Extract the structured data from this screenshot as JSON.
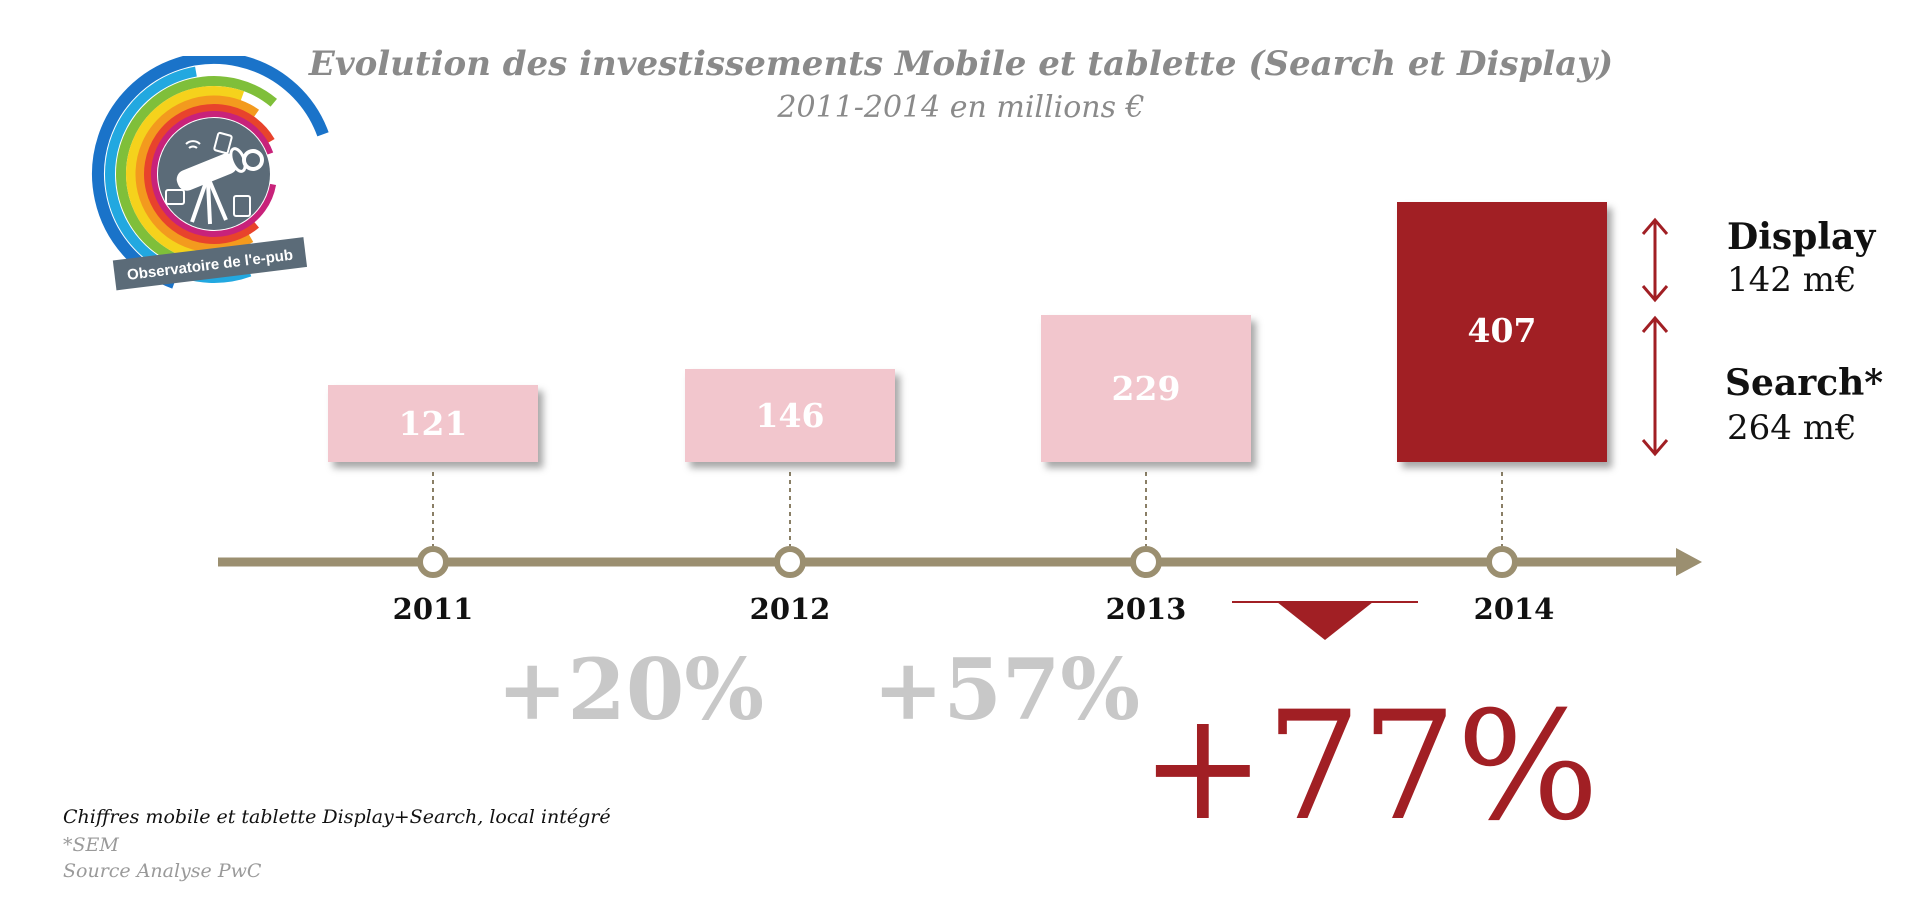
{
  "header": {
    "title": "Evolution des investissements Mobile et tablette (Search et Display)",
    "subtitle": "2011-2014 en millions €"
  },
  "logo": {
    "text": "Observatoire de l'e-pub",
    "colors": [
      "#1a73c9",
      "#22a8e0",
      "#7fbf3a",
      "#f5d21c",
      "#f39a1e",
      "#e8432c",
      "#c8227a"
    ]
  },
  "chart_data": {
    "type": "bar",
    "categories": [
      "2011",
      "2012",
      "2013",
      "2014"
    ],
    "values": [
      121,
      146,
      229,
      407
    ],
    "labels": [
      "121",
      "146",
      "229",
      "407"
    ],
    "growth": [
      {
        "label": "+20%",
        "between": [
          "2011",
          "2012"
        ],
        "value": 20,
        "highlight": false
      },
      {
        "label": "+57%",
        "between": [
          "2012",
          "2013"
        ],
        "value": 57,
        "highlight": false
      },
      {
        "label": "+77%",
        "between": [
          "2013",
          "2014"
        ],
        "value": 77,
        "highlight": true
      }
    ],
    "breakdown_2014": [
      {
        "name": "Display",
        "value": 142,
        "label": "142 m€"
      },
      {
        "name": "Search*",
        "value": 264,
        "label": "264 m€"
      }
    ],
    "colors": {
      "past": "#f2c6cd",
      "current": "#a11f24",
      "axis": "#9b8f70",
      "growth_muted": "#c8c8c8",
      "growth_highlight": "#a11f24"
    }
  },
  "notes": {
    "line1": "Chiffres mobile et tablette Display+Search, local intégré",
    "line2": "*SEM",
    "line3": "Source Analyse PwC"
  }
}
